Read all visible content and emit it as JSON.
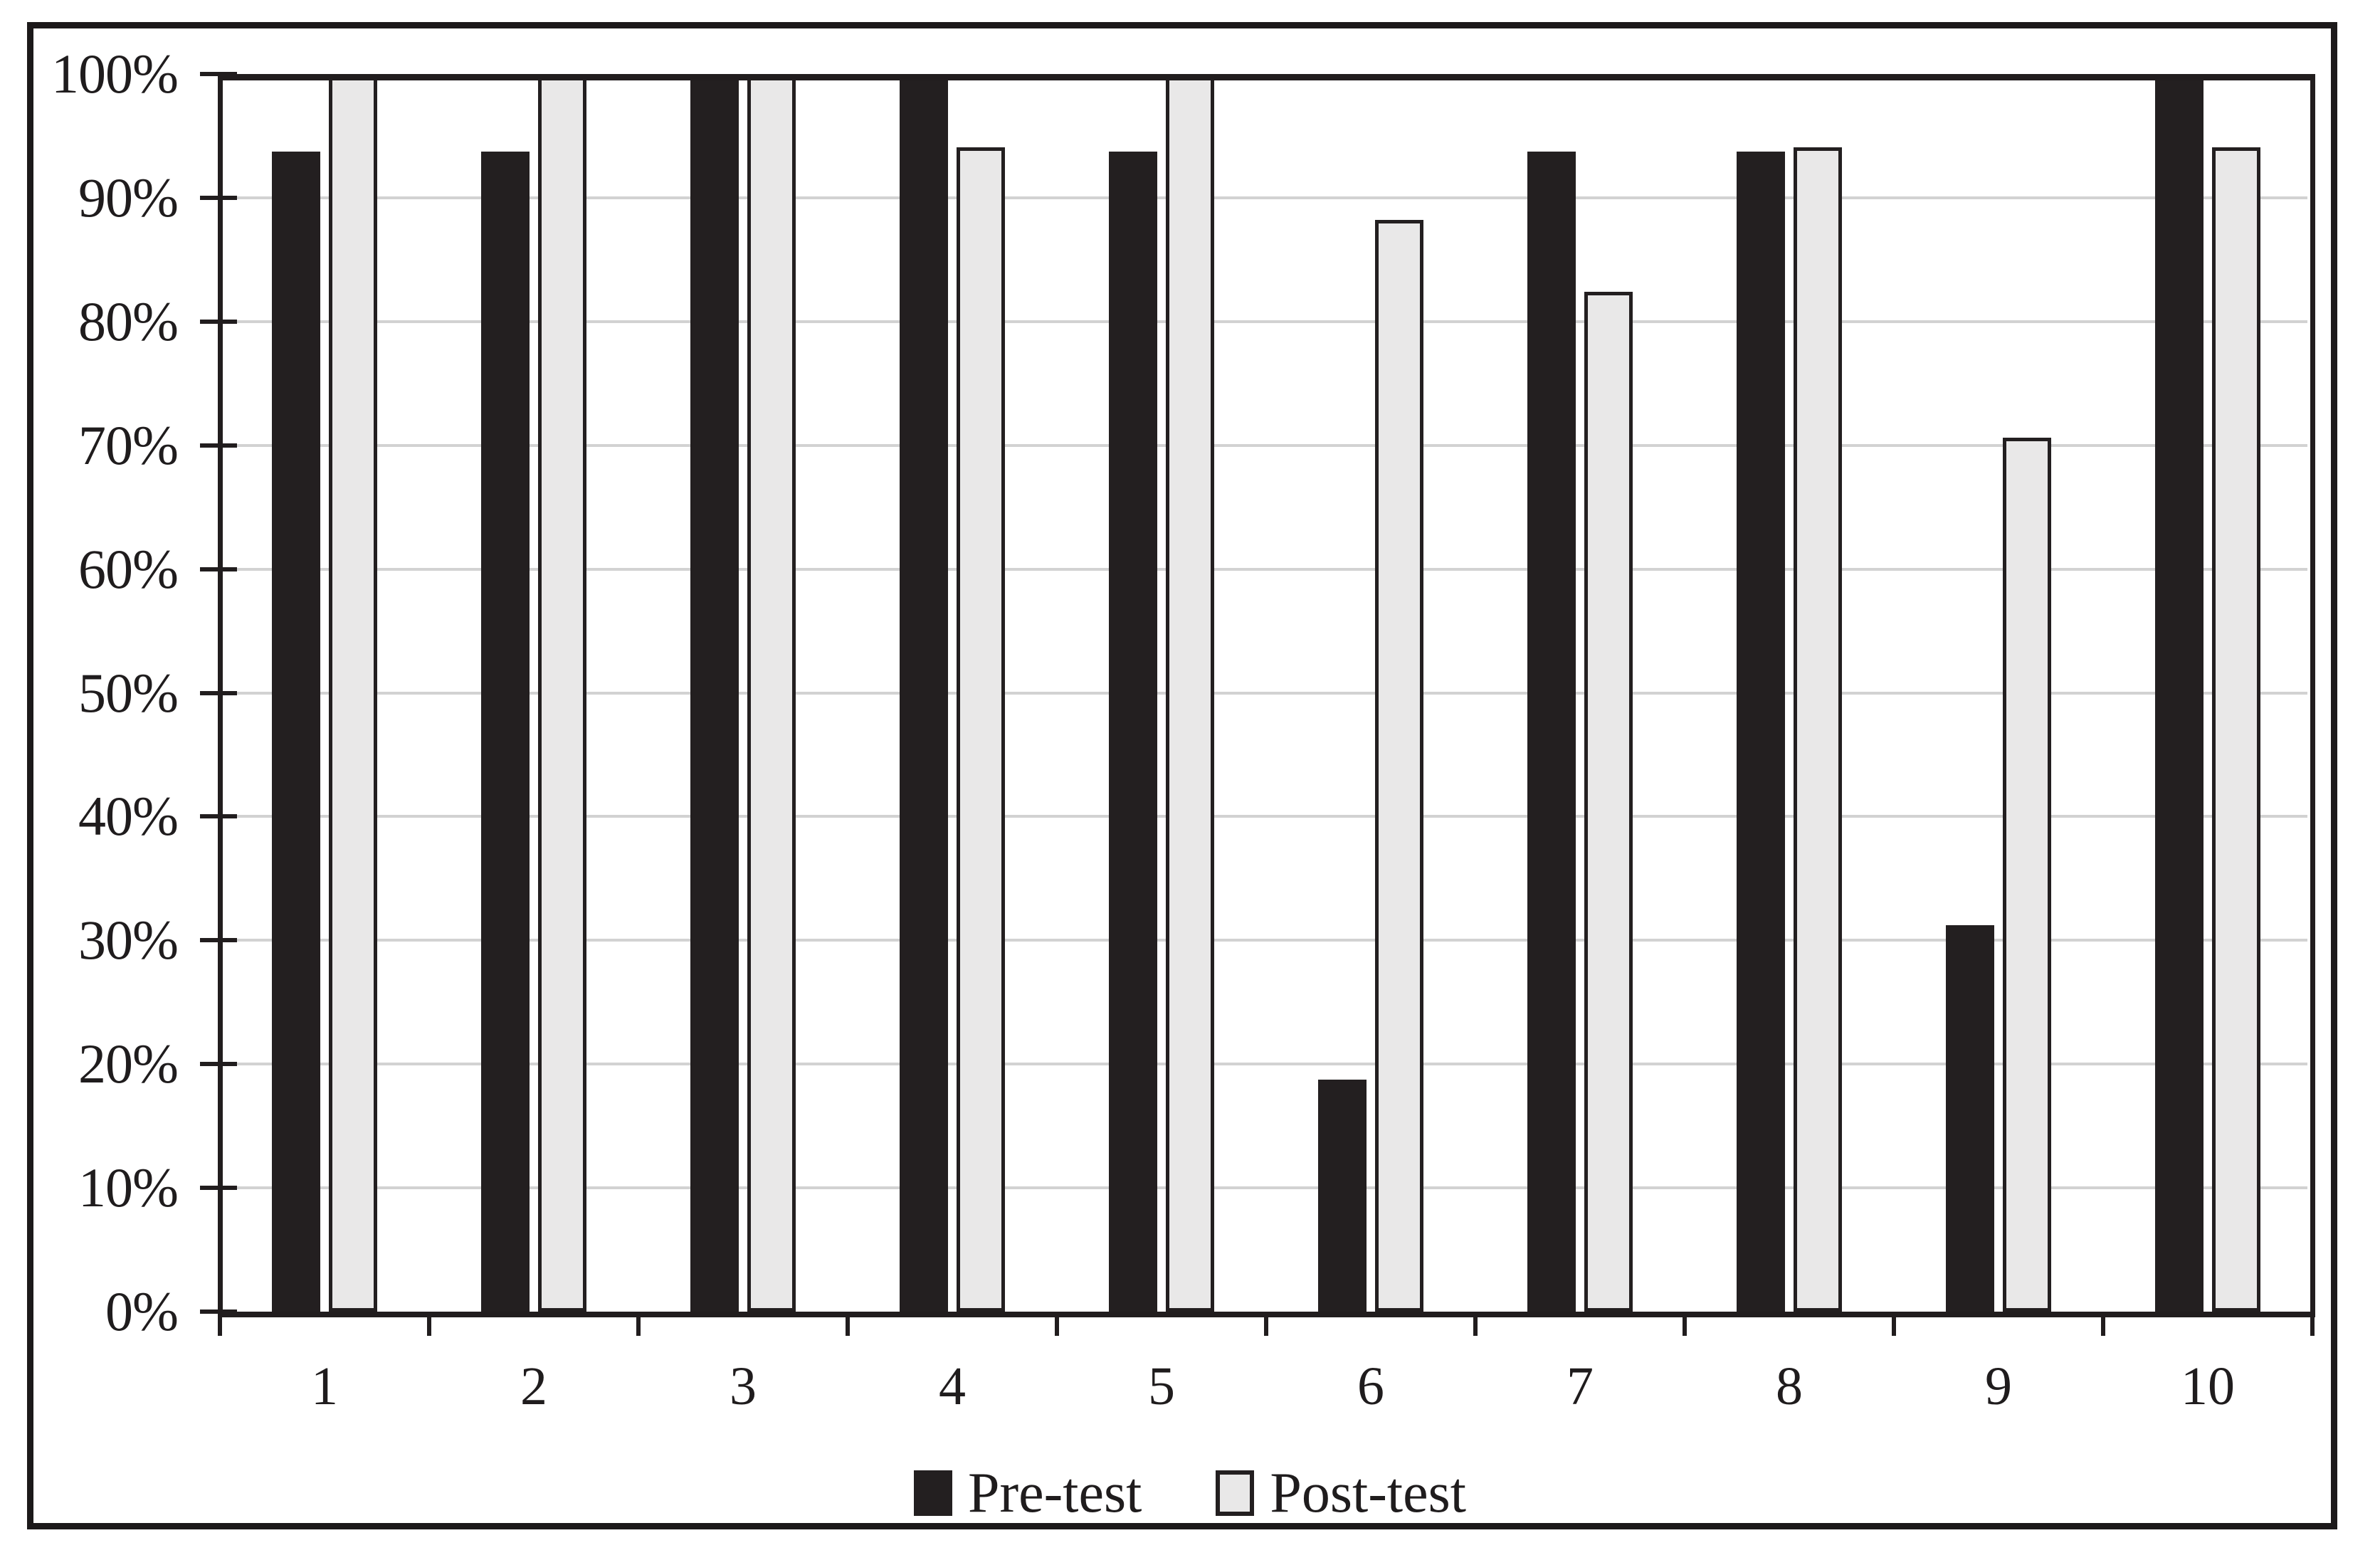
{
  "chart_data": {
    "type": "bar",
    "title": "",
    "xlabel": "",
    "ylabel": "",
    "categories": [
      "1",
      "2",
      "3",
      "4",
      "5",
      "6",
      "7",
      "8",
      "9",
      "10"
    ],
    "series": [
      {
        "name": "Pre-test",
        "color": "#231f20",
        "outline": "#231f20",
        "values": [
          93.75,
          93.75,
          100,
          100,
          93.75,
          18.75,
          93.75,
          93.75,
          31.25,
          100
        ]
      },
      {
        "name": "Post-test",
        "color": "#e9e8e8",
        "outline": "#231f20",
        "values": [
          100,
          100,
          100,
          94.1,
          100,
          88.2,
          82.4,
          94.1,
          70.6,
          94.1
        ]
      }
    ],
    "ylim": [
      0,
      100
    ],
    "y_ticks": [
      "0%",
      "10%",
      "20%",
      "30%",
      "40%",
      "50%",
      "60%",
      "70%",
      "80%",
      "90%",
      "100%"
    ],
    "grid": true,
    "legend_position": "bottom"
  },
  "colors": {
    "background": "#ffffff",
    "figure_border": "#1c191a",
    "axis": "#211d1e",
    "gridline": "#d2d2d2",
    "text": "#1f1c1d"
  }
}
